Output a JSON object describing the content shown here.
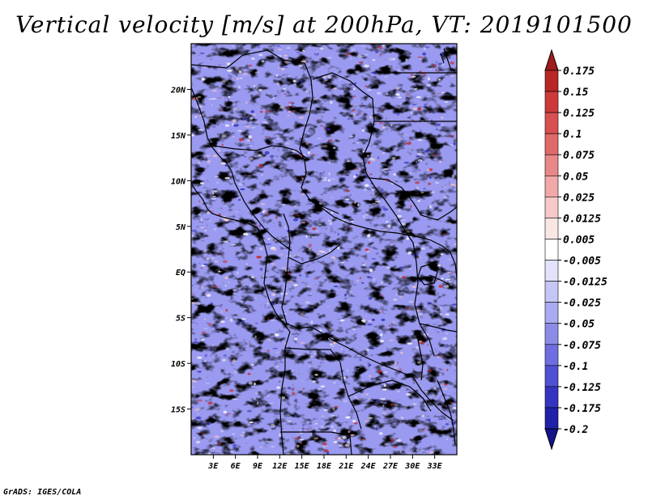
{
  "title": "Vertical velocity [m/s] at 200hPa, VT: 2019101500",
  "footer": "GrADS: IGES/COLA",
  "map": {
    "lon_range": [
      0,
      36
    ],
    "lat_range": [
      -20,
      25
    ],
    "lon_ticks": [
      "3E",
      "6E",
      "9E",
      "12E",
      "15E",
      "18E",
      "21E",
      "24E",
      "27E",
      "30E",
      "33E"
    ],
    "lon_tick_values": [
      3,
      6,
      9,
      12,
      15,
      18,
      21,
      24,
      27,
      30,
      33
    ],
    "lat_ticks": [
      "20N",
      "15N",
      "10N",
      "5N",
      "EQ",
      "5S",
      "10S",
      "15S"
    ],
    "lat_tick_values": [
      20,
      15,
      10,
      5,
      0,
      -5,
      -10,
      -15
    ]
  },
  "colorbar": {
    "levels": [
      "0.175",
      "0.15",
      "0.125",
      "0.1",
      "0.075",
      "0.05",
      "0.025",
      "0.0125",
      "0.005",
      "-0.005",
      "-0.0125",
      "-0.025",
      "-0.05",
      "-0.075",
      "-0.1",
      "-0.125",
      "-0.175",
      "-0.2"
    ],
    "colors": [
      "#a01c1c",
      "#b82626",
      "#cc3a3a",
      "#d85050",
      "#e06a6a",
      "#e88888",
      "#f0a8a8",
      "#f6c8c8",
      "#fbe6e6",
      "#ffffff",
      "#e2e2fb",
      "#c6c6f6",
      "#aaaaf0",
      "#8c8ce8",
      "#6e6ee0",
      "#5050d4",
      "#3434c0",
      "#2020a8",
      "#14148c"
    ],
    "top_arrow_color": "#a01c1c",
    "bottom_arrow_color": "#14148c"
  }
}
